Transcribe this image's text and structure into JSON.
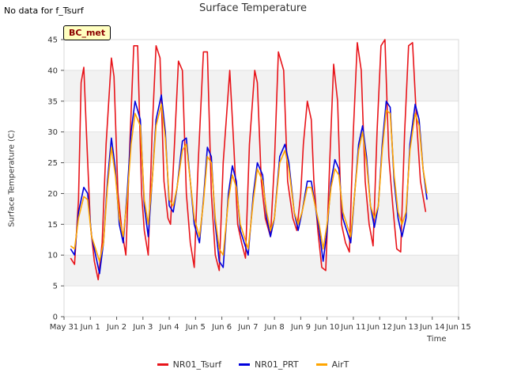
{
  "header": {
    "note": "No data for f_Tsurf",
    "badge": "BC_met"
  },
  "chart_data": {
    "type": "line",
    "title": "Surface Temperature",
    "xlabel": "Time",
    "ylabel": "Surface Temperature (C)",
    "ylim": [
      0,
      45
    ],
    "yticks": [
      0,
      5,
      10,
      15,
      20,
      25,
      30,
      35,
      40,
      45
    ],
    "xlim": [
      0,
      15
    ],
    "xticks": [
      {
        "value": 0,
        "label": "May 31"
      },
      {
        "value": 1,
        "label": "Jun 1"
      },
      {
        "value": 2,
        "label": "Jun 2"
      },
      {
        "value": 3,
        "label": "Jun 3"
      },
      {
        "value": 4,
        "label": "Jun 4"
      },
      {
        "value": 5,
        "label": "Jun 5"
      },
      {
        "value": 6,
        "label": "Jun 6"
      },
      {
        "value": 7,
        "label": "Jun 7"
      },
      {
        "value": 8,
        "label": "Jun 8"
      },
      {
        "value": 9,
        "label": "Jun 9"
      },
      {
        "value": 10,
        "label": "Jun 10"
      },
      {
        "value": 11,
        "label": "Jun 11"
      },
      {
        "value": 12,
        "label": "Jun 12"
      },
      {
        "value": 13,
        "label": "Jun 13"
      },
      {
        "value": 14,
        "label": "Jun 14"
      },
      {
        "value": 15,
        "label": "Jun 15"
      }
    ],
    "grid": "horizontal bands",
    "legend": "bottom-center",
    "series": [
      {
        "name": "NR01_Tsurf",
        "color": "#e8141a",
        "x": [
          0.25,
          0.4,
          0.55,
          0.65,
          0.75,
          0.85,
          1.0,
          1.15,
          1.3,
          1.45,
          1.6,
          1.8,
          1.9,
          2.05,
          2.2,
          2.35,
          2.5,
          2.65,
          2.8,
          2.95,
          3.05,
          3.2,
          3.35,
          3.5,
          3.65,
          3.8,
          3.95,
          4.05,
          4.2,
          4.35,
          4.5,
          4.65,
          4.8,
          4.95,
          5.1,
          5.3,
          5.45,
          5.6,
          5.75,
          5.9,
          6.05,
          6.2,
          6.3,
          6.45,
          6.6,
          6.75,
          6.9,
          7.05,
          7.25,
          7.35,
          7.5,
          7.65,
          7.85,
          8.0,
          8.15,
          8.35,
          8.5,
          8.7,
          8.85,
          9.0,
          9.1,
          9.25,
          9.4,
          9.5,
          9.65,
          9.8,
          9.95,
          10.1,
          10.25,
          10.4,
          10.55,
          10.7,
          10.85,
          11.0,
          11.15,
          11.3,
          11.45,
          11.6,
          11.75,
          11.9,
          12.05,
          12.2,
          12.35,
          12.5,
          12.65,
          12.8,
          12.95,
          13.1,
          13.25,
          13.4,
          13.55,
          13.75
        ],
        "y": [
          9.5,
          8.5,
          19,
          38,
          40.5,
          30,
          15,
          9,
          6,
          12,
          28,
          42,
          39,
          20,
          14,
          10,
          28,
          44,
          44,
          20,
          14,
          10,
          30,
          44,
          42,
          22,
          16,
          15,
          28,
          41.5,
          40,
          20,
          12,
          8,
          25,
          43,
          43,
          20,
          10,
          7.5,
          25,
          34,
          40,
          28,
          15,
          12,
          9.5,
          28,
          40,
          38,
          22,
          16,
          13,
          25,
          43,
          40,
          22,
          16,
          14,
          20,
          28,
          35,
          32,
          22,
          14,
          8,
          7.5,
          25,
          41,
          35,
          15,
          12,
          10.5,
          30,
          44.5,
          40,
          22,
          15,
          11.5,
          30,
          44,
          45,
          26,
          18,
          11,
          10.5,
          30,
          44,
          44.5,
          32,
          22,
          17
        ]
      },
      {
        "name": "NR01_PRT",
        "color": "#0000dd",
        "x": [
          0.25,
          0.4,
          0.55,
          0.75,
          0.9,
          1.05,
          1.2,
          1.35,
          1.5,
          1.65,
          1.8,
          1.95,
          2.1,
          2.25,
          2.4,
          2.55,
          2.7,
          2.9,
          3.05,
          3.2,
          3.35,
          3.5,
          3.7,
          3.85,
          4.0,
          4.15,
          4.3,
          4.5,
          4.65,
          4.8,
          4.95,
          5.15,
          5.3,
          5.45,
          5.6,
          5.75,
          5.9,
          6.05,
          6.25,
          6.4,
          6.55,
          6.7,
          6.85,
          7.0,
          7.2,
          7.35,
          7.55,
          7.7,
          7.85,
          8.0,
          8.2,
          8.4,
          8.55,
          8.75,
          8.9,
          9.05,
          9.25,
          9.4,
          9.55,
          9.7,
          9.85,
          10.0,
          10.15,
          10.3,
          10.45,
          10.6,
          10.75,
          10.9,
          11.05,
          11.2,
          11.35,
          11.5,
          11.65,
          11.8,
          11.95,
          12.1,
          12.25,
          12.4,
          12.55,
          12.7,
          12.85,
          13.0,
          13.15,
          13.35,
          13.5,
          13.65,
          13.8
        ],
        "y": [
          11,
          10,
          17,
          21,
          20,
          13,
          10,
          7,
          12,
          22,
          29,
          24,
          15,
          12,
          20,
          30,
          35,
          32,
          18,
          13,
          22,
          32,
          36,
          30,
          18,
          17,
          21,
          28.5,
          29,
          22,
          15,
          12,
          19,
          27.5,
          26,
          15,
          9,
          8,
          20,
          24.5,
          22,
          14,
          12,
          10,
          20,
          25,
          23,
          16,
          13,
          16,
          26,
          28,
          25,
          17,
          14,
          17,
          22,
          22,
          18,
          14,
          9,
          14,
          22,
          25.5,
          24,
          16,
          14,
          12,
          20,
          28,
          31,
          26,
          18,
          14.5,
          18,
          28,
          35,
          34,
          22,
          16,
          13,
          16,
          28,
          34.5,
          32,
          24,
          19
        ]
      },
      {
        "name": "AirT",
        "color": "#ffa500",
        "x": [
          0.25,
          0.4,
          0.55,
          0.75,
          0.9,
          1.05,
          1.2,
          1.35,
          1.5,
          1.65,
          1.8,
          1.95,
          2.1,
          2.25,
          2.4,
          2.55,
          2.7,
          2.9,
          3.05,
          3.2,
          3.35,
          3.5,
          3.7,
          3.85,
          4.0,
          4.15,
          4.3,
          4.5,
          4.65,
          4.8,
          4.95,
          5.15,
          5.3,
          5.45,
          5.6,
          5.75,
          5.9,
          6.05,
          6.25,
          6.4,
          6.55,
          6.7,
          6.85,
          7.0,
          7.2,
          7.35,
          7.55,
          7.7,
          7.85,
          8.0,
          8.2,
          8.4,
          8.55,
          8.75,
          8.9,
          9.05,
          9.25,
          9.4,
          9.55,
          9.7,
          9.85,
          10.0,
          10.15,
          10.3,
          10.45,
          10.6,
          10.75,
          10.9,
          11.05,
          11.2,
          11.35,
          11.5,
          11.65,
          11.8,
          11.95,
          12.1,
          12.25,
          12.4,
          12.55,
          12.7,
          12.85,
          13.0,
          13.15,
          13.35,
          13.5,
          13.65,
          13.8
        ],
        "y": [
          11.5,
          11,
          16,
          19.5,
          19,
          13,
          11,
          9,
          12,
          21,
          27.5,
          23,
          16,
          13,
          19,
          28,
          33,
          31,
          19,
          15,
          22,
          31,
          34.5,
          29,
          19,
          18,
          21,
          27,
          28,
          22,
          16,
          13,
          18.5,
          26,
          25,
          16,
          11,
          10,
          19,
          23,
          21,
          15,
          13,
          11,
          19,
          24,
          22,
          17,
          14,
          16,
          25,
          27,
          24,
          17,
          15,
          17,
          21,
          21,
          18,
          15,
          11,
          15,
          21,
          24,
          23,
          17,
          15,
          13,
          20,
          27,
          30,
          25,
          18,
          16,
          18,
          27,
          33.5,
          33,
          23,
          17,
          15,
          17,
          27,
          33,
          31,
          24,
          20
        ]
      }
    ]
  }
}
